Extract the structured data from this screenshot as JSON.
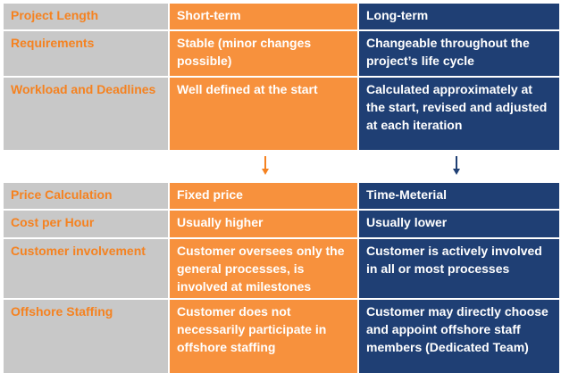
{
  "top_table": {
    "rows": [
      {
        "label": "Project Length",
        "short": "Short-term",
        "long": "Long-term"
      },
      {
        "label": "Requirements",
        "short": "Stable (minor changes possible)",
        "long": "Changeable throughout the project’s life cycle"
      },
      {
        "label": "Workload and Deadlines",
        "short": "Well defined at the start",
        "long": "Calculated approximately at the start, revised and adjusted at each iteration"
      }
    ]
  },
  "bottom_table": {
    "rows": [
      {
        "label": "Price Calculation",
        "short": "Fixed price",
        "long": "Time-Meterial"
      },
      {
        "label": "Cost per Hour",
        "short": "Usually higher",
        "long": "Usually lower"
      },
      {
        "label": "Customer involvement",
        "short": "Customer oversees only the general processes, is involved at milestones",
        "long": "Customer is actively involved in all or most processes"
      },
      {
        "label": "Offshore Staffing",
        "short": "Customer  does not necessarily participate in offshore staffing",
        "long": "Customer  may directly choose and appoint offshore staff members (Dedicated Team)"
      }
    ]
  },
  "colors": {
    "label_bg": "#c8c8c8",
    "label_text": "#f58220",
    "short_bg": "#f7913d",
    "long_bg": "#1f3f74",
    "arrow_short": "#f58220",
    "arrow_long": "#1f3f74"
  },
  "icons": [
    "arrow-down-icon",
    "arrow-down-icon"
  ]
}
